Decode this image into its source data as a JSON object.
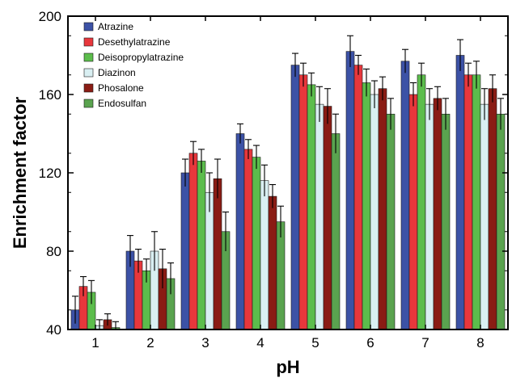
{
  "chart_data": {
    "type": "bar",
    "xlabel": "pH",
    "ylabel": "Enrichment factor",
    "categories": [
      "1",
      "2",
      "3",
      "4",
      "5",
      "6",
      "7",
      "8"
    ],
    "ylim": [
      40,
      200
    ],
    "yticks": [
      40,
      80,
      120,
      160,
      200
    ],
    "legend_position": "top-left",
    "grid": false,
    "series": [
      {
        "name": "Atrazine",
        "color": "#3c52a6",
        "values": [
          50,
          80,
          120,
          140,
          175,
          182,
          177,
          180
        ],
        "errors": [
          7,
          8,
          7,
          5,
          6,
          8,
          6,
          8
        ]
      },
      {
        "name": "Desethylatrazine",
        "color": "#e8373c",
        "values": [
          62,
          75,
          130,
          132,
          170,
          175,
          160,
          170
        ],
        "errors": [
          5,
          6,
          6,
          5,
          6,
          5,
          6,
          6
        ]
      },
      {
        "name": "Deisopropylatrazine",
        "color": "#5cbd4c",
        "values": [
          59,
          70,
          126,
          128,
          165,
          166,
          170,
          170
        ],
        "errors": [
          6,
          6,
          6,
          6,
          6,
          7,
          6,
          7
        ]
      },
      {
        "name": "Diazinon",
        "color": "#d9eff2",
        "values": [
          42,
          80,
          110,
          116,
          155,
          160,
          155,
          155
        ],
        "errors": [
          3,
          10,
          10,
          8,
          9,
          7,
          8,
          8
        ]
      },
      {
        "name": "Phosalone",
        "color": "#8a1c14",
        "values": [
          45,
          71,
          117,
          108,
          154,
          163,
          158,
          163
        ],
        "errors": [
          3,
          10,
          10,
          6,
          9,
          6,
          6,
          7
        ]
      },
      {
        "name": "Endosulfan",
        "color": "#5aa34f",
        "values": [
          41,
          66,
          90,
          95,
          140,
          150,
          150,
          150
        ],
        "errors": [
          3,
          8,
          10,
          8,
          10,
          8,
          8,
          8
        ]
      }
    ]
  }
}
